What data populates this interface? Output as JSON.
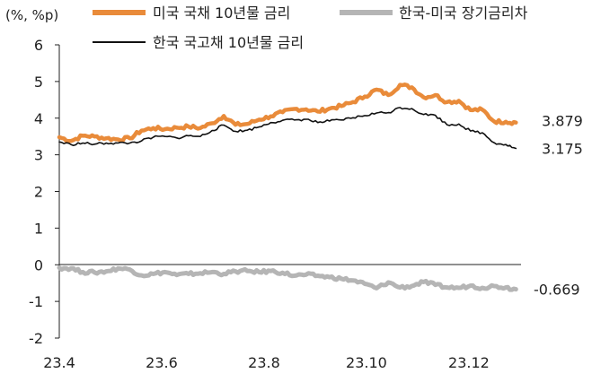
{
  "chart_data": {
    "type": "line",
    "y_unit_label": "(%, %p)",
    "ylim": [
      -2,
      6
    ],
    "y_ticks": [
      "6",
      "5",
      "4",
      "3",
      "2",
      "1",
      "0",
      "-1",
      "-2"
    ],
    "x_ticks": [
      "23.4",
      "23.6",
      "23.8",
      "23.10",
      "23.12"
    ],
    "x_range": [
      "2023-04-01",
      "2023-12-31"
    ],
    "grid": false,
    "legend_position": "top",
    "series": [
      {
        "name": "미국 국채 10년물 금리",
        "color": "#E98B3A",
        "end_label": "3.879",
        "points": [
          [
            "2023-04-01",
            3.48
          ],
          [
            "2023-04-08",
            3.38
          ],
          [
            "2023-04-15",
            3.52
          ],
          [
            "2023-04-22",
            3.5
          ],
          [
            "2023-04-29",
            3.45
          ],
          [
            "2023-05-06",
            3.42
          ],
          [
            "2023-05-13",
            3.45
          ],
          [
            "2023-05-20",
            3.66
          ],
          [
            "2023-05-27",
            3.73
          ],
          [
            "2023-06-03",
            3.7
          ],
          [
            "2023-06-10",
            3.74
          ],
          [
            "2023-06-17",
            3.77
          ],
          [
            "2023-06-24",
            3.73
          ],
          [
            "2023-07-01",
            3.86
          ],
          [
            "2023-07-08",
            4.06
          ],
          [
            "2023-07-15",
            3.82
          ],
          [
            "2023-07-22",
            3.84
          ],
          [
            "2023-07-29",
            3.96
          ],
          [
            "2023-08-05",
            4.05
          ],
          [
            "2023-08-12",
            4.16
          ],
          [
            "2023-08-19",
            4.25
          ],
          [
            "2023-08-26",
            4.24
          ],
          [
            "2023-09-02",
            4.18
          ],
          [
            "2023-09-09",
            4.26
          ],
          [
            "2023-09-16",
            4.33
          ],
          [
            "2023-09-23",
            4.44
          ],
          [
            "2023-09-30",
            4.59
          ],
          [
            "2023-10-07",
            4.78
          ],
          [
            "2023-10-14",
            4.63
          ],
          [
            "2023-10-21",
            4.91
          ],
          [
            "2023-10-28",
            4.84
          ],
          [
            "2023-11-04",
            4.57
          ],
          [
            "2023-11-11",
            4.63
          ],
          [
            "2023-11-18",
            4.44
          ],
          [
            "2023-11-25",
            4.47
          ],
          [
            "2023-12-02",
            4.22
          ],
          [
            "2023-12-09",
            4.23
          ],
          [
            "2023-12-16",
            3.91
          ],
          [
            "2023-12-23",
            3.9
          ],
          [
            "2023-12-29",
            3.879
          ]
        ]
      },
      {
        "name": "한국-미국 장기금리차",
        "color": "#B5B5B5",
        "end_label": "-0.669",
        "points": [
          [
            "2023-04-01",
            -0.08
          ],
          [
            "2023-04-08",
            -0.1
          ],
          [
            "2023-04-15",
            -0.2
          ],
          [
            "2023-04-22",
            -0.21
          ],
          [
            "2023-04-29",
            -0.18
          ],
          [
            "2023-05-06",
            -0.1
          ],
          [
            "2023-05-13",
            -0.13
          ],
          [
            "2023-05-20",
            -0.29
          ],
          [
            "2023-05-27",
            -0.25
          ],
          [
            "2023-06-03",
            -0.2
          ],
          [
            "2023-06-10",
            -0.28
          ],
          [
            "2023-06-17",
            -0.25
          ],
          [
            "2023-06-24",
            -0.23
          ],
          [
            "2023-07-01",
            -0.2
          ],
          [
            "2023-07-08",
            -0.25
          ],
          [
            "2023-07-15",
            -0.18
          ],
          [
            "2023-07-22",
            -0.17
          ],
          [
            "2023-07-29",
            -0.2
          ],
          [
            "2023-08-05",
            -0.17
          ],
          [
            "2023-08-12",
            -0.22
          ],
          [
            "2023-08-19",
            -0.3
          ],
          [
            "2023-08-26",
            -0.27
          ],
          [
            "2023-09-02",
            -0.3
          ],
          [
            "2023-09-09",
            -0.34
          ],
          [
            "2023-09-16",
            -0.38
          ],
          [
            "2023-09-23",
            -0.43
          ],
          [
            "2023-09-30",
            -0.52
          ],
          [
            "2023-10-07",
            -0.64
          ],
          [
            "2023-10-14",
            -0.48
          ],
          [
            "2023-10-21",
            -0.62
          ],
          [
            "2023-10-28",
            -0.58
          ],
          [
            "2023-11-04",
            -0.47
          ],
          [
            "2023-11-11",
            -0.55
          ],
          [
            "2023-11-18",
            -0.62
          ],
          [
            "2023-11-25",
            -0.63
          ],
          [
            "2023-12-02",
            -0.57
          ],
          [
            "2023-12-09",
            -0.63
          ],
          [
            "2023-12-16",
            -0.58
          ],
          [
            "2023-12-23",
            -0.62
          ],
          [
            "2023-12-29",
            -0.669
          ]
        ]
      },
      {
        "name": "한국 국고채 10년물 금리",
        "color": "#111111",
        "end_label": "3.175",
        "points": [
          [
            "2023-04-01",
            3.35
          ],
          [
            "2023-04-08",
            3.28
          ],
          [
            "2023-04-15",
            3.32
          ],
          [
            "2023-04-22",
            3.29
          ],
          [
            "2023-04-29",
            3.32
          ],
          [
            "2023-05-06",
            3.32
          ],
          [
            "2023-05-13",
            3.32
          ],
          [
            "2023-05-20",
            3.38
          ],
          [
            "2023-05-27",
            3.48
          ],
          [
            "2023-06-03",
            3.5
          ],
          [
            "2023-06-10",
            3.46
          ],
          [
            "2023-06-17",
            3.52
          ],
          [
            "2023-06-24",
            3.5
          ],
          [
            "2023-07-01",
            3.66
          ],
          [
            "2023-07-08",
            3.81
          ],
          [
            "2023-07-15",
            3.64
          ],
          [
            "2023-07-22",
            3.67
          ],
          [
            "2023-07-29",
            3.76
          ],
          [
            "2023-08-05",
            3.88
          ],
          [
            "2023-08-12",
            3.94
          ],
          [
            "2023-08-19",
            3.95
          ],
          [
            "2023-08-26",
            3.97
          ],
          [
            "2023-09-02",
            3.88
          ],
          [
            "2023-09-09",
            3.92
          ],
          [
            "2023-09-16",
            3.95
          ],
          [
            "2023-09-23",
            4.01
          ],
          [
            "2023-09-30",
            4.07
          ],
          [
            "2023-10-07",
            4.14
          ],
          [
            "2023-10-14",
            4.15
          ],
          [
            "2023-10-21",
            4.29
          ],
          [
            "2023-10-28",
            4.26
          ],
          [
            "2023-11-04",
            4.1
          ],
          [
            "2023-11-11",
            4.08
          ],
          [
            "2023-11-18",
            3.82
          ],
          [
            "2023-11-25",
            3.84
          ],
          [
            "2023-12-02",
            3.65
          ],
          [
            "2023-12-09",
            3.6
          ],
          [
            "2023-12-16",
            3.33
          ],
          [
            "2023-12-23",
            3.28
          ],
          [
            "2023-12-29",
            3.175
          ]
        ]
      }
    ]
  }
}
